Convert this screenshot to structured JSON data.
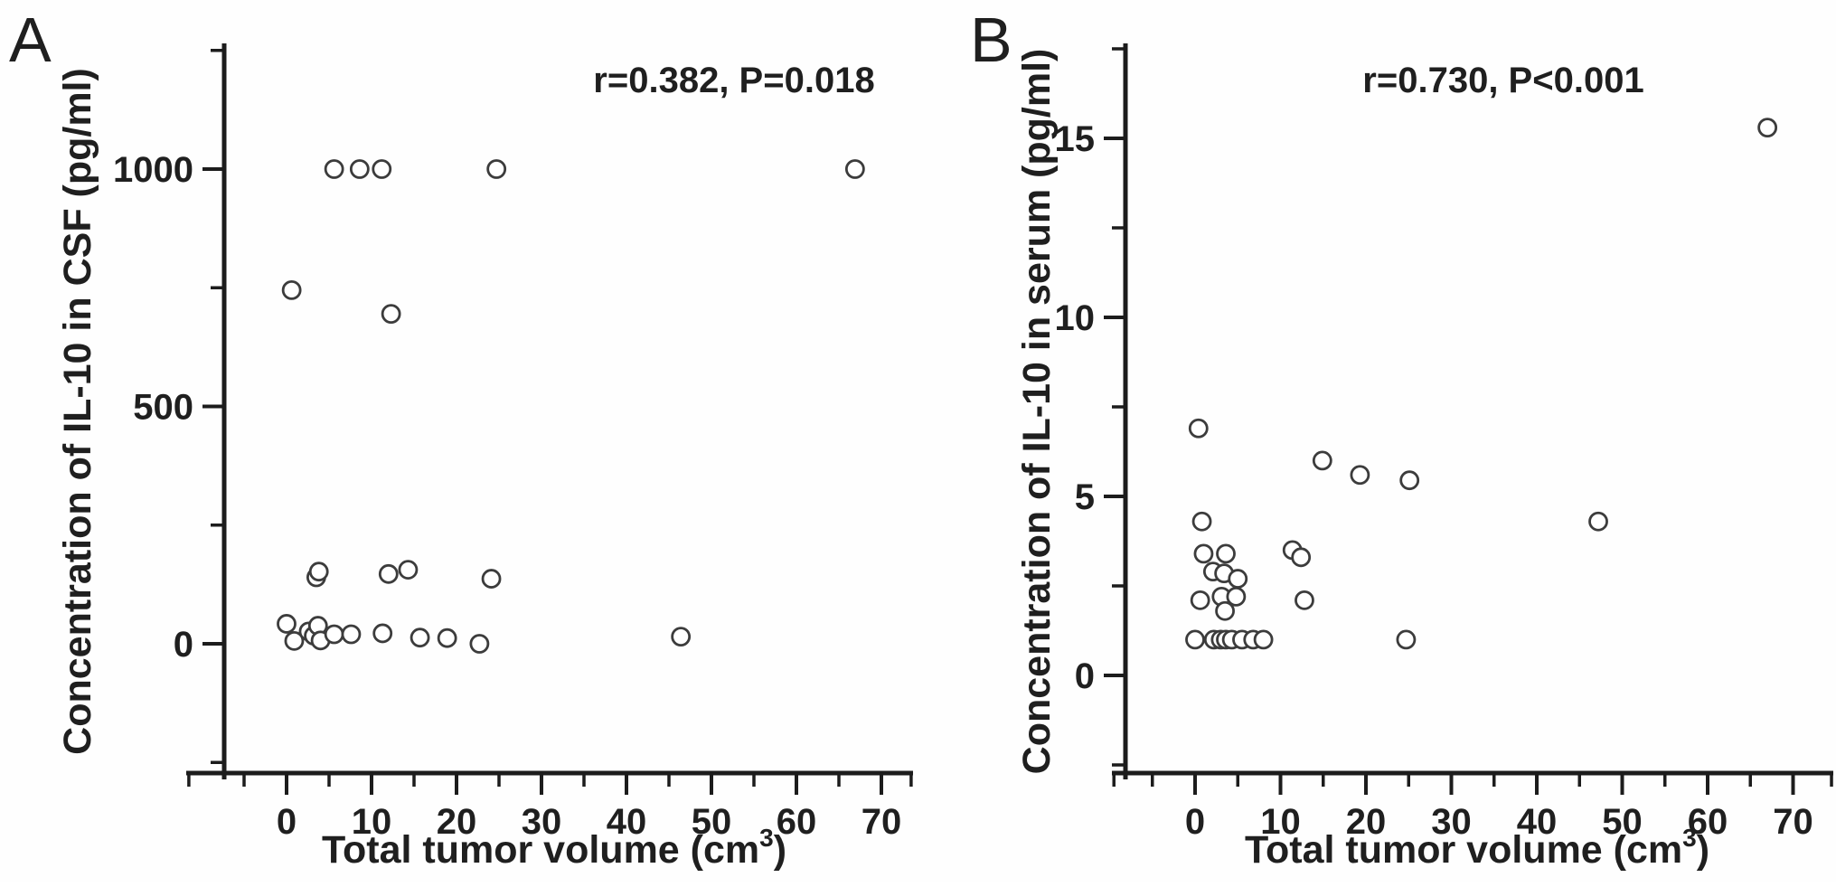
{
  "figure": {
    "background": "#fefefe",
    "axis_color": "#1c1c1c",
    "marker_color": "#3c3c3c",
    "marker_fill": "#ffffff"
  },
  "chart_data": [
    {
      "type": "scatter",
      "panel_label": "A",
      "annotation": "r=0.382, P=0.018",
      "ylabel": "Concentration of IL-10 in CSF (pg/ml)",
      "xlabel_parts": [
        "Total tumor volume (cm",
        "3",
        ")"
      ],
      "xlim": [
        -11.7,
        73.7
      ],
      "ylim": [
        -280,
        1265
      ],
      "xticks": [
        0,
        10,
        20,
        30,
        40,
        50,
        60,
        70
      ],
      "xminor": [
        -11.5,
        -5,
        5,
        15,
        25,
        35,
        45,
        55,
        65,
        73.5
      ],
      "yticks": [
        0,
        500,
        1000
      ],
      "yminor": [
        -250,
        250,
        750,
        1250
      ],
      "grid": false,
      "legend": null,
      "points": [
        [
          5.6,
          1000
        ],
        [
          8.6,
          1000
        ],
        [
          11.2,
          1000
        ],
        [
          24.7,
          1000
        ],
        [
          66.9,
          1000
        ],
        [
          0.6,
          745
        ],
        [
          12.3,
          695
        ],
        [
          3.5,
          140
        ],
        [
          3.8,
          152
        ],
        [
          12.0,
          147
        ],
        [
          14.3,
          156
        ],
        [
          24.1,
          137
        ],
        [
          0.0,
          42
        ],
        [
          0.9,
          6
        ],
        [
          2.6,
          26
        ],
        [
          3.2,
          17
        ],
        [
          3.7,
          38
        ],
        [
          4.0,
          7
        ],
        [
          5.6,
          20
        ],
        [
          7.6,
          20
        ],
        [
          11.3,
          22
        ],
        [
          15.7,
          13
        ],
        [
          18.9,
          12
        ],
        [
          22.7,
          0
        ],
        [
          46.4,
          15
        ]
      ]
    },
    {
      "type": "scatter",
      "panel_label": "B",
      "annotation": "r=0.730, P<0.001",
      "ylabel": "Concentration of IL-10 in serum (pg/ml)",
      "xlabel_parts": [
        "Total tumor volume (cm",
        "3",
        ")"
      ],
      "xlim": [
        -11.3,
        74.7
      ],
      "ylim": [
        -2.8,
        17.7
      ],
      "xticks": [
        0,
        10,
        20,
        30,
        40,
        50,
        60,
        70
      ],
      "xminor": [
        -9.5,
        -5,
        5,
        15,
        25,
        35,
        45,
        55,
        65,
        74.5
      ],
      "yticks": [
        0,
        5,
        10,
        15
      ],
      "yminor": [
        -2.5,
        2.5,
        7.5,
        12.5,
        17.5
      ],
      "grid": false,
      "legend": null,
      "points": [
        [
          67.0,
          15.3
        ],
        [
          0.4,
          6.9
        ],
        [
          14.9,
          6.0
        ],
        [
          19.3,
          5.6
        ],
        [
          25.1,
          5.45
        ],
        [
          47.2,
          4.3
        ],
        [
          0.8,
          4.3
        ],
        [
          1.0,
          3.4
        ],
        [
          3.6,
          3.4
        ],
        [
          11.4,
          3.5
        ],
        [
          12.4,
          3.3
        ],
        [
          2.1,
          2.9
        ],
        [
          3.4,
          2.85
        ],
        [
          5.0,
          2.7
        ],
        [
          0.6,
          2.1
        ],
        [
          3.1,
          2.2
        ],
        [
          4.8,
          2.2
        ],
        [
          3.5,
          1.8
        ],
        [
          12.8,
          2.1
        ],
        [
          0.0,
          1.0
        ],
        [
          2.2,
          1.0
        ],
        [
          3.0,
          1.0
        ],
        [
          3.6,
          1.0
        ],
        [
          4.3,
          1.0
        ],
        [
          5.5,
          1.0
        ],
        [
          6.8,
          1.0
        ],
        [
          8.0,
          1.0
        ],
        [
          24.7,
          1.0
        ]
      ]
    }
  ]
}
